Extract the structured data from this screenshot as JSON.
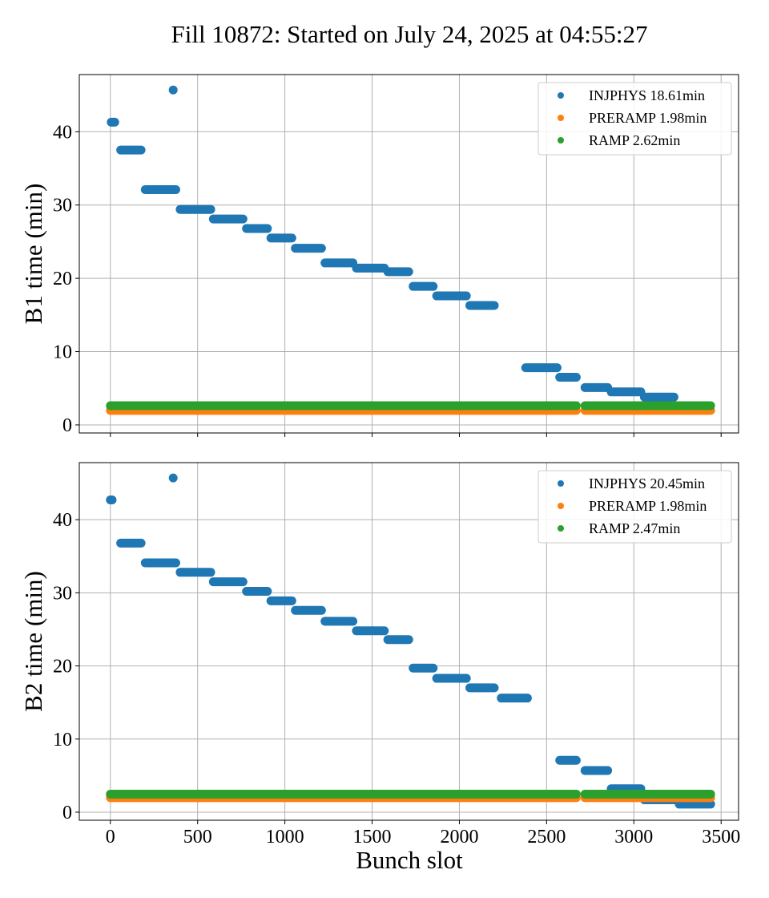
{
  "chart_data": {
    "type": "scatter",
    "title": "Fill 10872: Started on July 24, 2025 at 04:55:27",
    "xlabel": "Bunch slot",
    "xlim": [
      -178,
      3600
    ],
    "xticks": [
      0,
      500,
      1000,
      1500,
      2000,
      2500,
      3000,
      3500
    ],
    "grid": true,
    "legend_position": "top-right",
    "colors": {
      "INJPHYS": "#1f77b4",
      "PRERAMP": "#ff7f0e",
      "RAMP": "#2ca02c"
    },
    "panels": [
      {
        "name": "B1",
        "ylabel": "B1 time (min)",
        "ylim": [
          -1.1,
          47.8
        ],
        "yticks": [
          0,
          10,
          20,
          30,
          40
        ],
        "legend": [
          {
            "series": "INJPHYS",
            "label": "INJPHYS 18.61min"
          },
          {
            "series": "PRERAMP",
            "label": "PRERAMP 1.98min"
          },
          {
            "series": "RAMP",
            "label": "RAMP 2.62min"
          }
        ],
        "series": [
          {
            "name": "INJPHYS",
            "segments": [
              [
                5,
                25,
                41.3
              ],
              [
                360,
                360,
                45.7
              ],
              [
                59,
                176,
                37.5
              ],
              [
                200,
                375,
                32.1
              ],
              [
                400,
                575,
                29.4
              ],
              [
                590,
                760,
                28.1
              ],
              [
                780,
                900,
                26.8
              ],
              [
                920,
                1040,
                25.5
              ],
              [
                1060,
                1210,
                24.1
              ],
              [
                1230,
                1390,
                22.1
              ],
              [
                1410,
                1570,
                21.4
              ],
              [
                1590,
                1710,
                20.9
              ],
              [
                1735,
                1850,
                18.9
              ],
              [
                1870,
                2040,
                17.6
              ],
              [
                2060,
                2200,
                16.3
              ],
              [
                2380,
                2560,
                7.8
              ],
              [
                2575,
                2670,
                6.5
              ],
              [
                2720,
                2850,
                5.1
              ],
              [
                2870,
                3040,
                4.5
              ],
              [
                3060,
                3230,
                3.8
              ]
            ]
          },
          {
            "name": "PRERAMP",
            "segments": [
              [
                0,
                2670,
                1.98
              ],
              [
                2720,
                3440,
                1.98
              ]
            ]
          },
          {
            "name": "RAMP",
            "segments": [
              [
                0,
                2670,
                2.62
              ],
              [
                2720,
                3440,
                2.62
              ]
            ]
          }
        ]
      },
      {
        "name": "B2",
        "ylabel": "B2 time (min)",
        "ylim": [
          -1.1,
          47.8
        ],
        "yticks": [
          0,
          10,
          20,
          30,
          40
        ],
        "legend": [
          {
            "series": "INJPHYS",
            "label": "INJPHYS 20.45min"
          },
          {
            "series": "PRERAMP",
            "label": "PRERAMP 1.98min"
          },
          {
            "series": "RAMP",
            "label": "RAMP 2.47min"
          }
        ],
        "series": [
          {
            "name": "INJPHYS",
            "segments": [
              [
                0,
                10,
                42.7
              ],
              [
                360,
                360,
                45.7
              ],
              [
                59,
                176,
                36.8
              ],
              [
                200,
                375,
                34.1
              ],
              [
                400,
                575,
                32.8
              ],
              [
                590,
                760,
                31.5
              ],
              [
                780,
                900,
                30.2
              ],
              [
                920,
                1040,
                28.9
              ],
              [
                1060,
                1210,
                27.6
              ],
              [
                1230,
                1390,
                26.1
              ],
              [
                1410,
                1570,
                24.8
              ],
              [
                1590,
                1710,
                23.6
              ],
              [
                1735,
                1850,
                19.7
              ],
              [
                1870,
                2040,
                18.3
              ],
              [
                2060,
                2200,
                17.0
              ],
              [
                2240,
                2390,
                15.6
              ],
              [
                2575,
                2670,
                7.1
              ],
              [
                2720,
                2850,
                5.7
              ],
              [
                2870,
                3040,
                3.2
              ],
              [
                3060,
                3230,
                1.7
              ],
              [
                3260,
                3440,
                1.1
              ]
            ]
          },
          {
            "name": "PRERAMP",
            "segments": [
              [
                0,
                2670,
                1.98
              ],
              [
                2720,
                3440,
                1.98
              ]
            ]
          },
          {
            "name": "RAMP",
            "segments": [
              [
                0,
                2670,
                2.47
              ],
              [
                2720,
                3440,
                2.47
              ]
            ]
          }
        ]
      }
    ]
  }
}
